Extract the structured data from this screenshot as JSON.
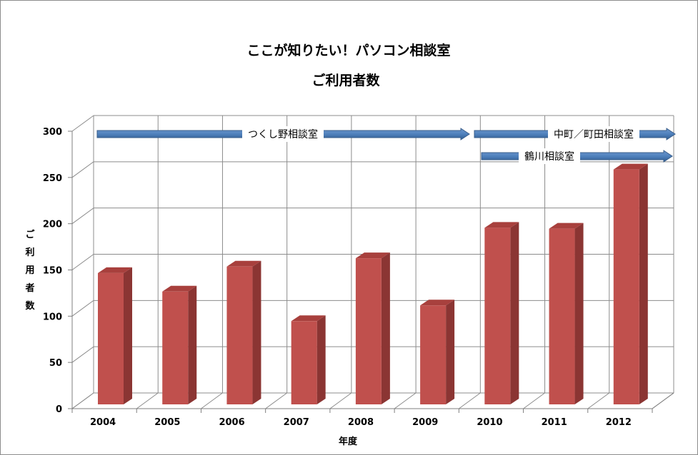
{
  "chart_data": {
    "type": "bar",
    "title": "ここが知りたい！パソコン相談室",
    "subtitle": "ご利用者数",
    "xlabel": "年度",
    "ylabel": "ご利用者数",
    "categories": [
      "2004",
      "2005",
      "2006",
      "2007",
      "2008",
      "2009",
      "2010",
      "2011",
      "2012"
    ],
    "values": [
      142,
      122,
      149,
      90,
      158,
      107,
      191,
      190,
      254
    ],
    "ylim": [
      0,
      300
    ],
    "yticks": [
      "0",
      "50",
      "100",
      "150",
      "200",
      "250",
      "300"
    ],
    "grid": true,
    "legend": "none",
    "bar_color": "#c0504d",
    "arrow_color": "#4f81bd",
    "annotations": [
      {
        "label": "つくし野相談室",
        "from": "2004",
        "to": "2009"
      },
      {
        "label": "中町／町田相談室",
        "from": "2010",
        "to": "2012"
      },
      {
        "label": "鶴川相談室",
        "from": "2010",
        "to": "2012"
      }
    ]
  }
}
